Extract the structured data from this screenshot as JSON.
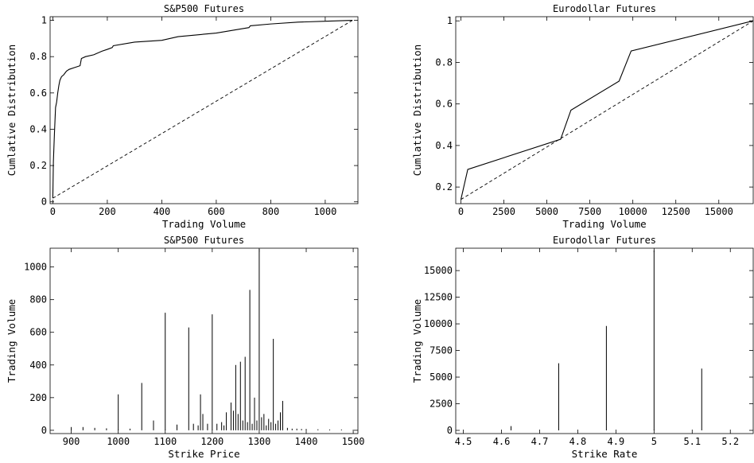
{
  "chart_data": [
    {
      "type": "line",
      "title": "S&P500 Futures",
      "xlabel": "Trading Volume",
      "ylabel": "Cumlative Distribution",
      "xlim": [
        -10,
        1120
      ],
      "ylim": [
        -0.01,
        1.02
      ],
      "xticks": [
        0,
        200,
        400,
        600,
        800,
        1000
      ],
      "xtick_labels": [
        "0",
        "200",
        "400",
        "600",
        "800",
        "1000"
      ],
      "yticks": [
        0,
        0.2,
        0.4,
        0.6,
        0.8,
        1
      ],
      "ytick_labels": [
        "0",
        "0.2",
        "0.4",
        "0.6",
        "0.8",
        "1"
      ],
      "grid": false,
      "series": [
        {
          "style": "solid",
          "x": [
            0,
            2,
            4,
            6,
            8,
            10,
            14,
            18,
            22,
            26,
            32,
            40,
            50,
            60,
            80,
            100,
            105,
            120,
            150,
            180,
            200,
            218,
            222,
            300,
            400,
            460,
            600,
            700,
            720,
            725,
            800,
            900,
            1000,
            1100
          ],
          "y": [
            0.02,
            0.22,
            0.3,
            0.38,
            0.45,
            0.52,
            0.55,
            0.6,
            0.64,
            0.67,
            0.69,
            0.7,
            0.72,
            0.73,
            0.74,
            0.75,
            0.79,
            0.8,
            0.81,
            0.83,
            0.84,
            0.85,
            0.86,
            0.88,
            0.89,
            0.91,
            0.93,
            0.955,
            0.96,
            0.97,
            0.98,
            0.99,
            0.995,
            1.0
          ]
        },
        {
          "style": "dashed",
          "x": [
            0,
            1100
          ],
          "y": [
            0.02,
            1.0
          ]
        }
      ]
    },
    {
      "type": "line",
      "title": "Eurodollar Futures",
      "xlabel": "Trading Volume",
      "ylabel": "Cumlative Distribution",
      "xlim": [
        -300,
        17000
      ],
      "ylim": [
        0.12,
        1.02
      ],
      "xticks": [
        0,
        2500,
        5000,
        7500,
        10000,
        12500,
        15000
      ],
      "xtick_labels": [
        "0",
        "2500",
        "5000",
        "7500",
        "10000",
        "12500",
        "15000"
      ],
      "yticks": [
        0.2,
        0.4,
        0.6,
        0.8,
        1
      ],
      "ytick_labels": [
        "0.2",
        "0.4",
        "0.6",
        "0.8",
        "1"
      ],
      "grid": false,
      "series": [
        {
          "style": "solid",
          "x": [
            0,
            400,
            5800,
            6400,
            9200,
            9900,
            17000
          ],
          "y": [
            0.14,
            0.285,
            0.43,
            0.57,
            0.71,
            0.855,
            1.0
          ]
        },
        {
          "style": "dashed",
          "x": [
            0,
            17000
          ],
          "y": [
            0.14,
            1.0
          ]
        }
      ]
    },
    {
      "type": "bar",
      "bar_style": "spike",
      "title": "S&P500 Futures",
      "xlabel": "Strike Price",
      "ylabel": "Trading Volume",
      "xlim": [
        855,
        1510
      ],
      "ylim": [
        -20,
        1115
      ],
      "xticks": [
        900,
        1000,
        1100,
        1200,
        1300,
        1400,
        1500
      ],
      "xtick_labels": [
        "900",
        "1000",
        "1100",
        "1200",
        "1300",
        "1400",
        "1500"
      ],
      "yticks": [
        0,
        200,
        400,
        600,
        800,
        1000
      ],
      "ytick_labels": [
        "0",
        "200",
        "400",
        "600",
        "800",
        "1000"
      ],
      "grid": false,
      "x": [
        900,
        925,
        950,
        975,
        1000,
        1025,
        1050,
        1075,
        1100,
        1125,
        1150,
        1160,
        1170,
        1175,
        1180,
        1190,
        1200,
        1210,
        1220,
        1225,
        1230,
        1240,
        1245,
        1250,
        1255,
        1260,
        1265,
        1270,
        1275,
        1280,
        1285,
        1290,
        1295,
        1300,
        1305,
        1310,
        1315,
        1320,
        1325,
        1330,
        1335,
        1340,
        1345,
        1350,
        1360,
        1370,
        1380,
        1390,
        1400,
        1425,
        1450,
        1475
      ],
      "values": [
        20,
        20,
        15,
        12,
        220,
        10,
        290,
        60,
        720,
        35,
        630,
        40,
        30,
        220,
        100,
        40,
        710,
        40,
        50,
        30,
        110,
        170,
        120,
        400,
        100,
        420,
        60,
        450,
        50,
        860,
        40,
        200,
        60,
        1110,
        80,
        100,
        30,
        70,
        50,
        560,
        40,
        60,
        110,
        180,
        15,
        10,
        10,
        8,
        8,
        6,
        5,
        5
      ]
    },
    {
      "type": "bar",
      "bar_style": "spike",
      "title": "Eurodollar Futures",
      "xlabel": "Strike Rate",
      "ylabel": "Trading Volume",
      "xlim": [
        4.48,
        5.26
      ],
      "ylim": [
        -300,
        17100
      ],
      "xticks": [
        4.5,
        4.6,
        4.7,
        4.8,
        4.9,
        5,
        5.1,
        5.2
      ],
      "xtick_labels": [
        "4.5",
        "4.6",
        "4.7",
        "4.8",
        "4.9",
        "5",
        "5.1",
        "5.2"
      ],
      "yticks": [
        0,
        2500,
        5000,
        7500,
        10000,
        12500,
        15000
      ],
      "ytick_labels": [
        "0",
        "2500",
        "5000",
        "7500",
        "10000",
        "12500",
        "15000"
      ],
      "grid": false,
      "x": [
        4.625,
        4.75,
        4.875,
        5.0,
        5.125
      ],
      "values": [
        400,
        6300,
        9800,
        16900,
        5800
      ]
    }
  ]
}
